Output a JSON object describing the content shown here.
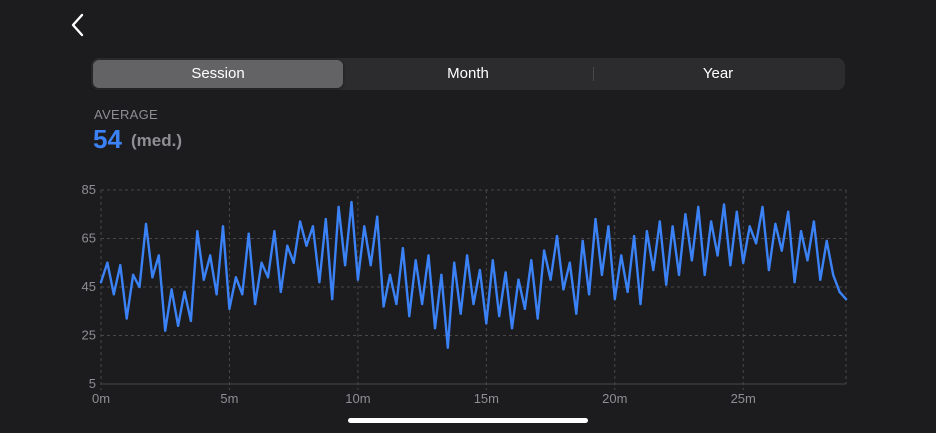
{
  "nav": {
    "back_icon": "chevron-left-icon"
  },
  "segments": [
    {
      "label": "Session",
      "selected": true
    },
    {
      "label": "Month",
      "selected": false
    },
    {
      "label": "Year",
      "selected": false
    }
  ],
  "stat": {
    "label": "AVERAGE",
    "value": "54",
    "unit": "(med.)"
  },
  "colors": {
    "background": "#1c1c1e",
    "accent": "#3b82f6",
    "line": "#3b82f6",
    "segment_bg": "#2c2c2e",
    "segment_selected": "#636366",
    "secondary_text": "#8e8e93",
    "grid": "#48484a"
  },
  "chart_data": {
    "type": "line",
    "title": "",
    "xlabel": "",
    "ylabel": "",
    "grid": true,
    "xlim": [
      0,
      29
    ],
    "ylim": [
      5,
      85
    ],
    "x_ticks": [
      0,
      5,
      10,
      15,
      20,
      25
    ],
    "x_tick_labels": [
      "0m",
      "5m",
      "10m",
      "15m",
      "20m",
      "25m"
    ],
    "y_ticks": [
      85,
      65,
      45,
      25,
      5
    ],
    "y_tick_labels": [
      "85",
      "65",
      "45",
      "25",
      "5"
    ],
    "series": [
      {
        "x": [
          0,
          0.25,
          0.5,
          0.75,
          1,
          1.25,
          1.5,
          1.75,
          2,
          2.25,
          2.5,
          2.75,
          3,
          3.25,
          3.5,
          3.75,
          4,
          4.25,
          4.5,
          4.75,
          5,
          5.25,
          5.5,
          5.75,
          6,
          6.25,
          6.5,
          6.75,
          7,
          7.25,
          7.5,
          7.75,
          8,
          8.25,
          8.5,
          8.75,
          9,
          9.25,
          9.5,
          9.75,
          10,
          10.25,
          10.5,
          10.75,
          11,
          11.25,
          11.5,
          11.75,
          12,
          12.25,
          12.5,
          12.75,
          13,
          13.25,
          13.5,
          13.75,
          14,
          14.25,
          14.5,
          14.75,
          15,
          15.25,
          15.5,
          15.75,
          16,
          16.25,
          16.5,
          16.75,
          17,
          17.25,
          17.5,
          17.75,
          18,
          18.25,
          18.5,
          18.75,
          19,
          19.25,
          19.5,
          19.75,
          20,
          20.25,
          20.5,
          20.75,
          21,
          21.25,
          21.5,
          21.75,
          22,
          22.25,
          22.5,
          22.75,
          23,
          23.25,
          23.5,
          23.75,
          24,
          24.25,
          24.5,
          24.75,
          25,
          25.25,
          25.5,
          25.75,
          26,
          26.25,
          26.5,
          26.75,
          27,
          27.25,
          27.5,
          27.75,
          28,
          28.25,
          28.5,
          28.75,
          29
        ],
        "values": [
          47,
          55,
          42,
          54,
          32,
          50,
          45,
          71,
          49,
          58,
          27,
          44,
          29,
          43,
          31,
          68,
          48,
          58,
          42,
          70,
          36,
          49,
          42,
          67,
          38,
          55,
          49,
          68,
          43,
          62,
          55,
          72,
          62,
          70,
          47,
          73,
          40,
          78,
          54,
          80,
          48,
          70,
          54,
          74,
          37,
          50,
          38,
          61,
          33,
          56,
          38,
          58,
          28,
          50,
          20,
          55,
          34,
          58,
          38,
          52,
          30,
          56,
          33,
          51,
          28,
          48,
          36,
          56,
          32,
          60,
          48,
          66,
          44,
          55,
          34,
          64,
          42,
          73,
          50,
          70,
          40,
          58,
          43,
          66,
          38,
          68,
          52,
          72,
          46,
          70,
          50,
          75,
          56,
          78,
          50,
          72,
          58,
          79,
          54,
          76,
          55,
          70,
          63,
          78,
          52,
          71,
          60,
          76,
          47,
          68,
          56,
          72,
          48,
          64,
          50,
          43,
          40
        ]
      }
    ]
  }
}
